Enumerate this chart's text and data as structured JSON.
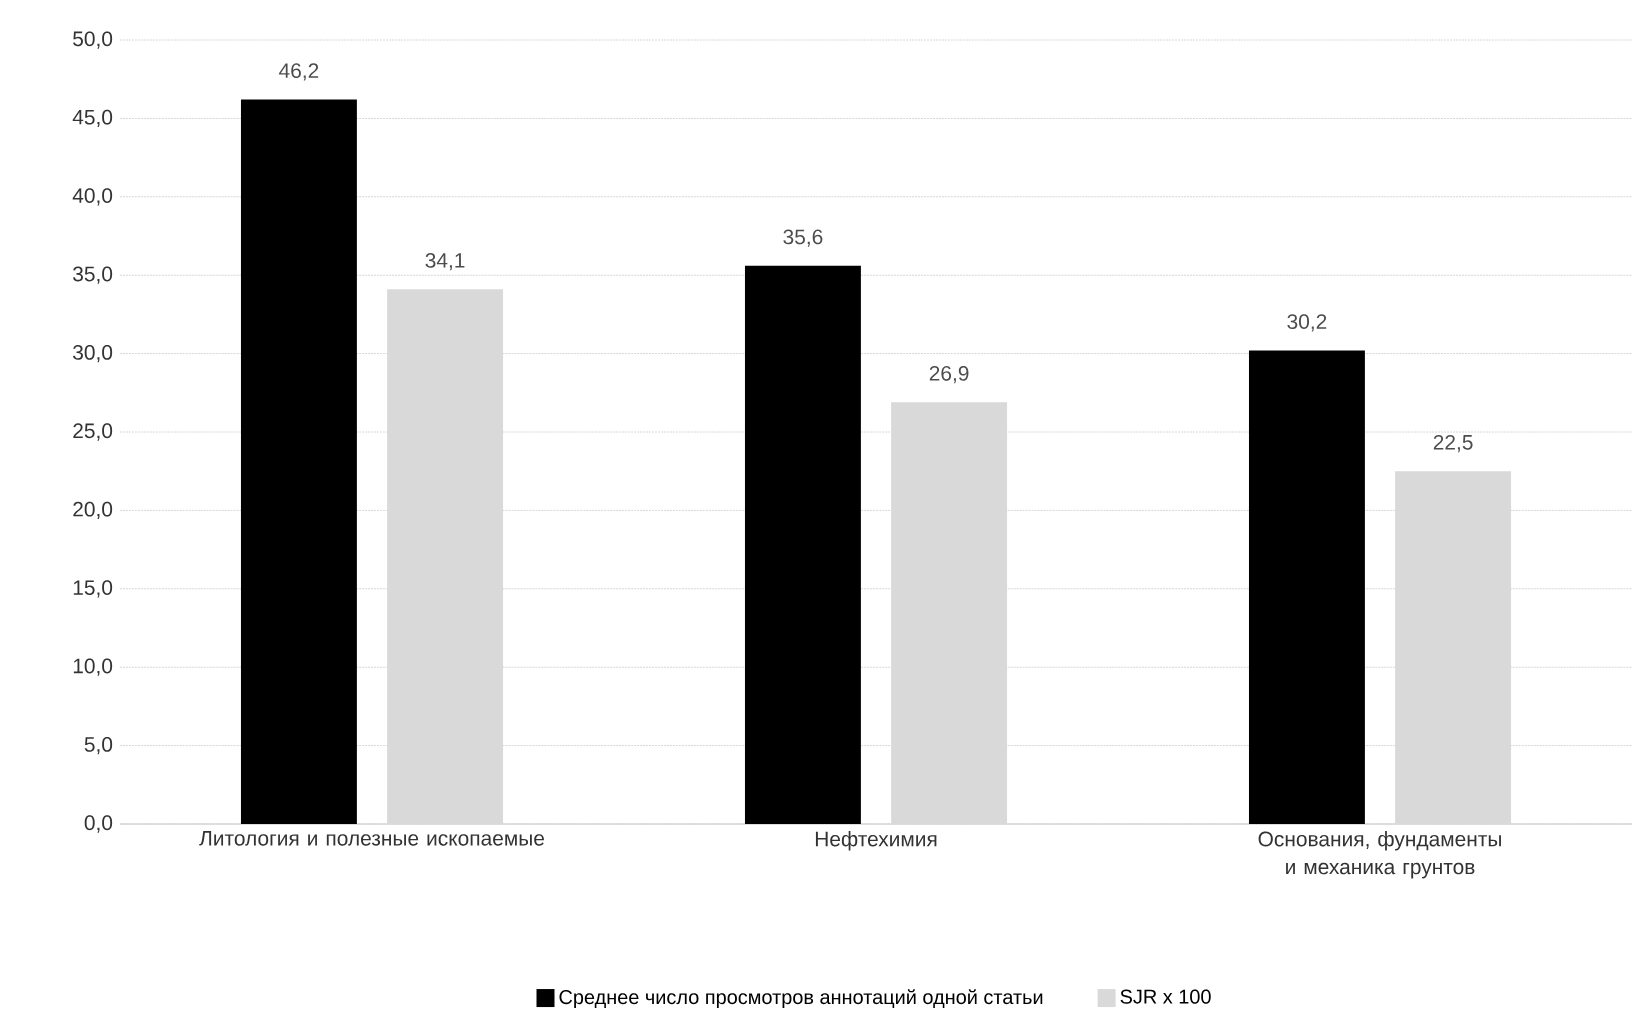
{
  "chart_data": {
    "type": "bar",
    "categories": [
      "Литология и полезные ископаемые",
      "Нефтехимия",
      "Основания, фундаменты и механика грунтов"
    ],
    "series": [
      {
        "name": "Среднее число просмотров аннотаций одной статьи",
        "color": "#000000",
        "values": [
          46.2,
          35.6,
          30.2
        ],
        "value_labels": [
          "46,2",
          "35,6",
          "30,2"
        ]
      },
      {
        "name": "SJR x 100",
        "color": "#d9d9d9",
        "values": [
          34.1,
          26.9,
          22.5
        ],
        "value_labels": [
          "34,1",
          "26,9",
          "22,5"
        ]
      }
    ],
    "ylim": [
      0,
      50
    ],
    "yticks": [
      {
        "value": 0,
        "label": "0,0"
      },
      {
        "value": 5,
        "label": "5,0"
      },
      {
        "value": 10,
        "label": "10,0"
      },
      {
        "value": 15,
        "label": "15,0"
      },
      {
        "value": 20,
        "label": "20,0"
      },
      {
        "value": 25,
        "label": "25,0"
      },
      {
        "value": 30,
        "label": "30,0"
      },
      {
        "value": 35,
        "label": "35,0"
      },
      {
        "value": 40,
        "label": "40,0"
      },
      {
        "value": 45,
        "label": "45,0"
      },
      {
        "value": 50,
        "label": "50,0"
      }
    ],
    "grid": "y",
    "legend": "bottom"
  }
}
